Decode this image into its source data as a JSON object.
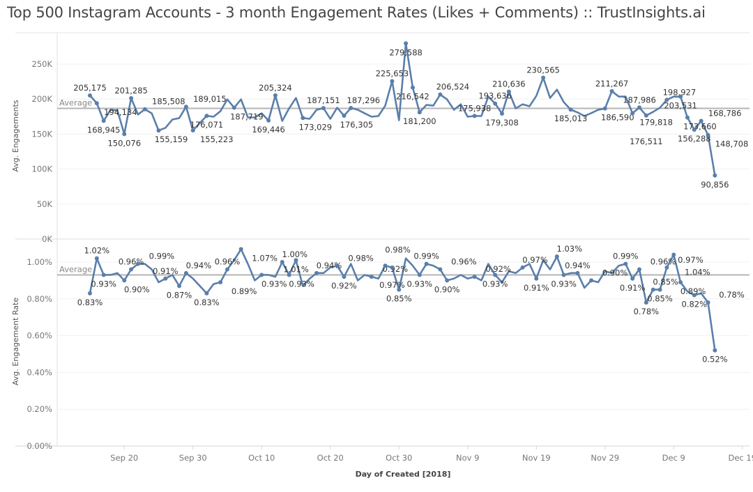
{
  "title": "Top 500 Instagram Accounts - 3 month Engagement Rates (Likes + Comments) :: TrustInsights.ai",
  "chart_data": [
    {
      "type": "line",
      "ylabel": "Avg. Engagements",
      "xlabel": "Day of Created [2018]",
      "ylim": [
        0,
        290000
      ],
      "yticks": [
        0,
        50000,
        100000,
        150000,
        200000,
        250000
      ],
      "ytick_labels": [
        "0K",
        "50K",
        "100K",
        "150K",
        "200K",
        "250K"
      ],
      "reference_line": {
        "label": "Average",
        "value": 186700
      },
      "color": "#5a7fab",
      "x": [
        "Sep 15",
        "Sep 16",
        "Sep 17",
        "Sep 18",
        "Sep 19",
        "Sep 20",
        "Sep 21",
        "Sep 22",
        "Sep 23",
        "Sep 24",
        "Sep 25",
        "Sep 26",
        "Sep 27",
        "Sep 28",
        "Sep 29",
        "Sep 30",
        "Oct 1",
        "Oct 2",
        "Oct 3",
        "Oct 4",
        "Oct 5",
        "Oct 6",
        "Oct 7",
        "Oct 8",
        "Oct 9",
        "Oct 10",
        "Oct 11",
        "Oct 12",
        "Oct 13",
        "Oct 14",
        "Oct 15",
        "Oct 16",
        "Oct 17",
        "Oct 18",
        "Oct 19",
        "Oct 20",
        "Oct 21",
        "Oct 22",
        "Oct 23",
        "Oct 24",
        "Oct 25",
        "Oct 26",
        "Oct 27",
        "Oct 28",
        "Oct 29",
        "Oct 30",
        "Oct 31",
        "Nov 1",
        "Nov 2",
        "Nov 3",
        "Nov 4",
        "Nov 5",
        "Nov 6",
        "Nov 7",
        "Nov 8",
        "Nov 9",
        "Nov 10",
        "Nov 11",
        "Nov 12",
        "Nov 13",
        "Nov 14",
        "Nov 15",
        "Nov 16",
        "Nov 17",
        "Nov 18",
        "Nov 19",
        "Nov 20",
        "Nov 21",
        "Nov 22",
        "Nov 23",
        "Nov 24",
        "Nov 25",
        "Nov 26",
        "Nov 27",
        "Nov 28",
        "Nov 29",
        "Nov 30",
        "Dec 1",
        "Dec 2",
        "Dec 3",
        "Dec 4",
        "Dec 5",
        "Dec 6",
        "Dec 7",
        "Dec 8",
        "Dec 9",
        "Dec 10",
        "Dec 11",
        "Dec 12",
        "Dec 13",
        "Dec 14",
        "Dec 15"
      ],
      "values": [
        205175,
        194134,
        168945,
        184700,
        183700,
        150076,
        201285,
        178000,
        185508,
        179700,
        155159,
        158900,
        170800,
        172800,
        189015,
        155223,
        165800,
        176071,
        174800,
        182700,
        199600,
        187719,
        199600,
        173800,
        173800,
        179700,
        169446,
        205324,
        168800,
        186700,
        201600,
        173029,
        171800,
        184700,
        187151,
        171800,
        187700,
        176305,
        187296,
        184700,
        179700,
        174800,
        175800,
        190700,
        225653,
        169800,
        279588,
        216542,
        181200,
        191700,
        190700,
        206524,
        199600,
        184700,
        192600,
        174800,
        175938,
        175800,
        203600,
        193636,
        179308,
        210636,
        186700,
        192600,
        189700,
        204600,
        230565,
        201600,
        213500,
        195600,
        185013,
        181000,
        175800,
        180000,
        184700,
        186590,
        211267,
        203600,
        203600,
        179818,
        187986,
        176511,
        181700,
        187700,
        198927,
        203600,
        203531,
        173660,
        156288,
        168786,
        148708,
        90856
      ],
      "labeled": [
        "Sep 15",
        "Sep 16",
        "Sep 17",
        "Sep 20",
        "Sep 21",
        "Sep 23",
        "Sep 25",
        "Sep 29",
        "Sep 30",
        "Oct 2",
        "Oct 6",
        "Oct 11",
        "Oct 12",
        "Oct 16",
        "Oct 19",
        "Oct 22",
        "Oct 23",
        "Oct 29",
        "Oct 31",
        "Nov 1",
        "Nov 2",
        "Nov 5",
        "Nov 10",
        "Nov 13",
        "Nov 14",
        "Nov 15",
        "Nov 20",
        "Nov 24",
        "Nov 29",
        "Nov 30",
        "Dec 3",
        "Dec 4",
        "Dec 5",
        "Dec 8",
        "Dec 10",
        "Dec 11",
        "Dec 12",
        "Dec 13",
        "Dec 14",
        "Dec 15"
      ]
    },
    {
      "type": "line",
      "ylabel": "Avg. Engagement Rate",
      "xlabel": "Day of Created [2018]",
      "ylim": [
        0,
        1.1
      ],
      "yticks": [
        0,
        0.2,
        0.4,
        0.6,
        0.8,
        1.0
      ],
      "ytick_labels": [
        "0.00%",
        "0.20%",
        "0.40%",
        "0.60%",
        "0.80%",
        "1.00%"
      ],
      "reference_line": {
        "label": "Average",
        "value": 0.93
      },
      "color": "#5a7fab",
      "values": [
        0.83,
        1.02,
        0.93,
        0.93,
        0.94,
        0.9,
        0.96,
        0.99,
        0.99,
        0.96,
        0.89,
        0.91,
        0.93,
        0.87,
        0.94,
        0.91,
        0.87,
        0.83,
        0.88,
        0.89,
        0.96,
        1.01,
        1.07,
        0.99,
        0.9,
        0.93,
        0.93,
        0.92,
        1.0,
        0.93,
        1.01,
        0.87,
        0.91,
        0.94,
        0.94,
        0.97,
        0.98,
        0.92,
        0.99,
        0.9,
        0.93,
        0.92,
        0.91,
        0.98,
        0.97,
        0.85,
        1.02,
        0.98,
        0.93,
        0.99,
        0.98,
        0.96,
        0.9,
        0.91,
        0.93,
        0.91,
        0.92,
        0.9,
        0.99,
        0.93,
        0.89,
        0.95,
        0.94,
        0.97,
        0.99,
        0.91,
        1.01,
        0.96,
        1.03,
        0.93,
        0.94,
        0.94,
        0.86,
        0.9,
        0.89,
        0.95,
        0.94,
        0.98,
        0.99,
        0.91,
        0.96,
        0.78,
        0.85,
        0.85,
        0.97,
        1.04,
        0.89,
        0.84,
        0.82,
        0.83,
        0.78,
        0.52
      ],
      "labeled": [
        "Sep 15",
        "Sep 16",
        "Sep 17",
        "Sep 20",
        "Sep 21",
        "Sep 22",
        "Sep 26",
        "Sep 28",
        "Sep 29",
        "Oct 2",
        "Oct 4",
        "Oct 5",
        "Oct 7",
        "Oct 10",
        "Oct 13",
        "Oct 14",
        "Oct 15",
        "Oct 18",
        "Oct 21",
        "Oct 22",
        "Oct 26",
        "Oct 28",
        "Oct 29",
        "Oct 30",
        "Nov 2",
        "Nov 3",
        "Nov 5",
        "Nov 6",
        "Nov 10",
        "Nov 13",
        "Nov 17",
        "Nov 19",
        "Nov 22",
        "Nov 23",
        "Nov 25",
        "Nov 27",
        "Dec 2",
        "Dec 3",
        "Dec 4",
        "Dec 5",
        "Dec 6",
        "Dec 7",
        "Dec 8",
        "Dec 9",
        "Dec 10",
        "Dec 12",
        "Dec 14",
        "Dec 15"
      ]
    }
  ],
  "x_axis": {
    "tick_labels": [
      "Sep 20",
      "Sep 30",
      "Oct 10",
      "Oct 20",
      "Oct 30",
      "Nov 9",
      "Nov 19",
      "Nov 29",
      "Dec 9",
      "Dec 19"
    ],
    "title": "Day of Created [2018]"
  }
}
